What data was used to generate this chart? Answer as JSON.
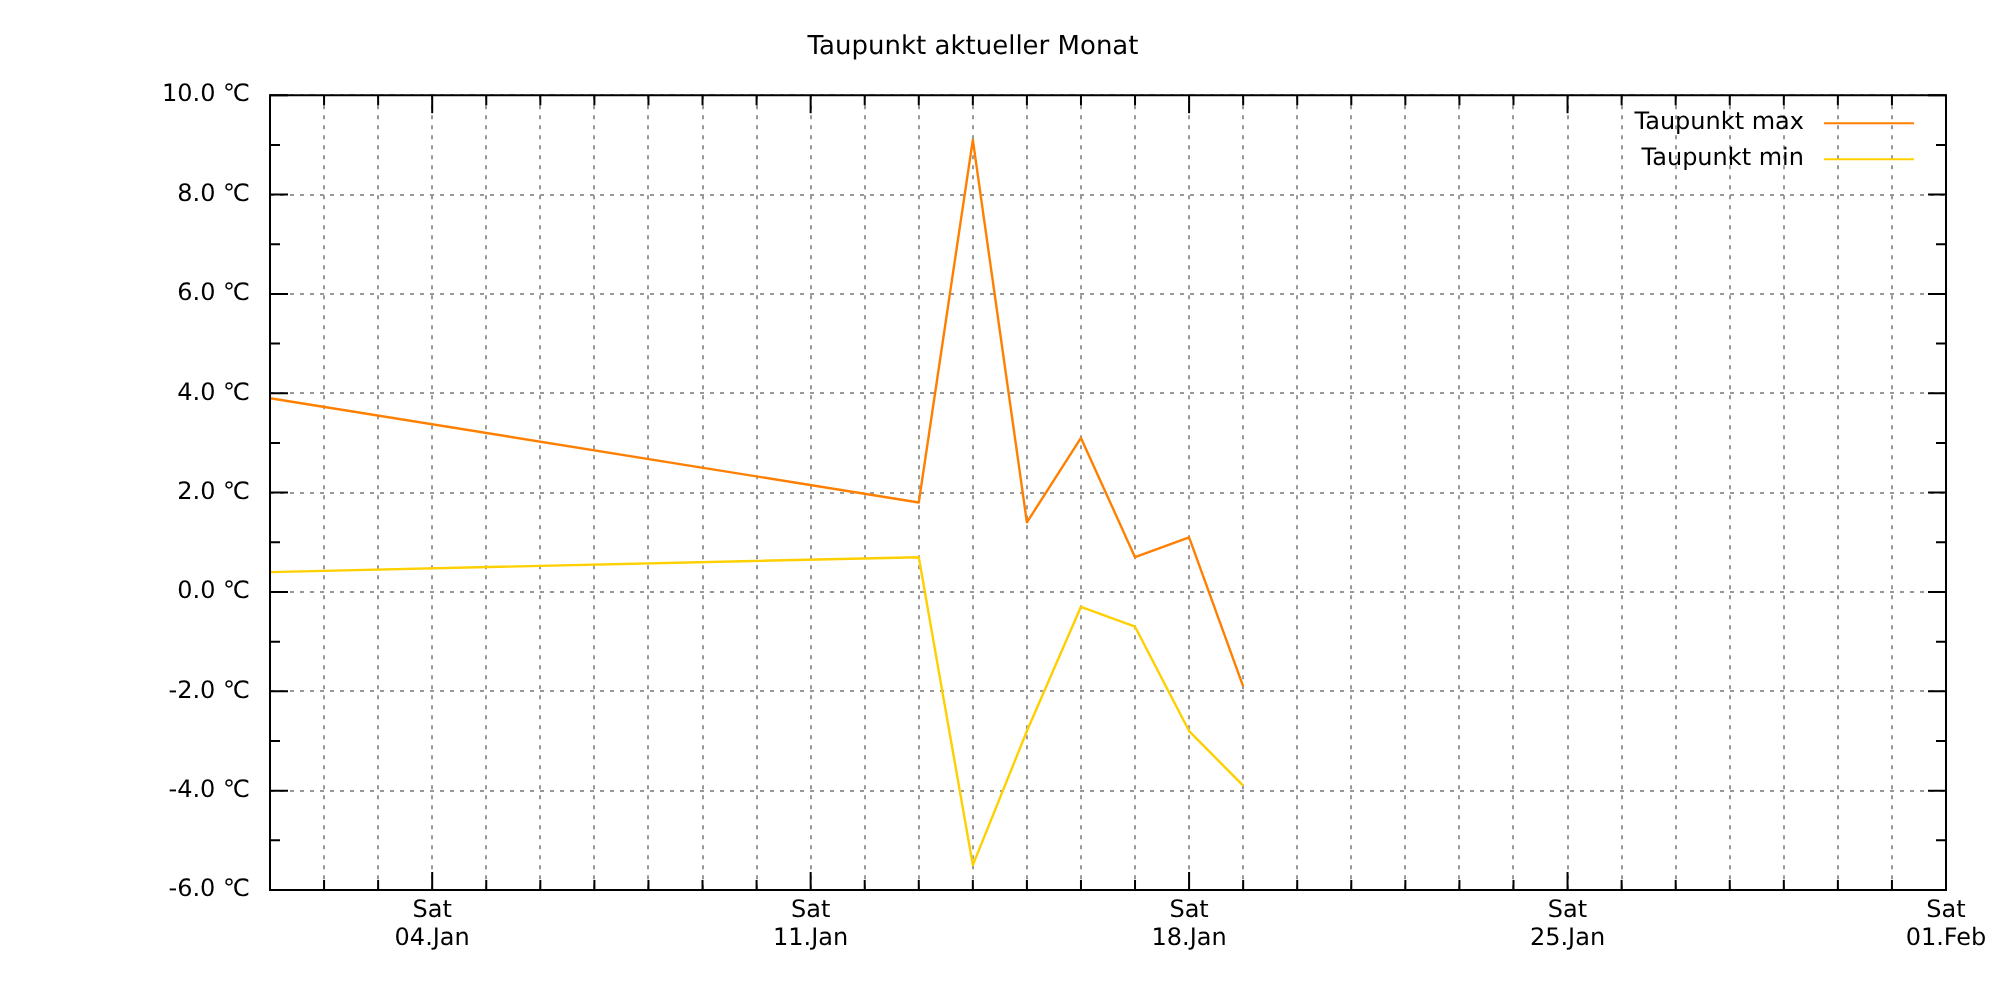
{
  "chart_data": {
    "type": "line",
    "title": "Taupunkt aktueller Monat",
    "x": [
      "--01-01",
      "--01-13",
      "--01-14",
      "--01-15",
      "--01-16",
      "--01-17",
      "--01-18",
      "--01-19"
    ],
    "series": [
      {
        "name": "Taupunkt max",
        "color": "#ff8000",
        "values": [
          3.9,
          1.8,
          9.1,
          1.4,
          3.1,
          0.7,
          1.1,
          -1.9
        ]
      },
      {
        "name": "Taupunkt min",
        "color": "#ffd000",
        "values": [
          0.4,
          0.7,
          -5.5,
          -2.8,
          -0.3,
          -0.7,
          -2.8,
          -3.9
        ]
      }
    ],
    "xlim": [
      "--01-01",
      "--02-01"
    ],
    "xticks": [
      {
        "value": "--01-01",
        "label": null
      },
      {
        "value": "--01-02",
        "label": null
      },
      {
        "value": "--01-03",
        "label": null
      },
      {
        "value": "--01-04",
        "label": "Sat\n04.Jan"
      },
      {
        "value": "--01-05",
        "label": null
      },
      {
        "value": "--01-06",
        "label": null
      },
      {
        "value": "--01-07",
        "label": null
      },
      {
        "value": "--01-08",
        "label": null
      },
      {
        "value": "--01-09",
        "label": null
      },
      {
        "value": "--01-10",
        "label": null
      },
      {
        "value": "--01-11",
        "label": "Sat\n11.Jan"
      },
      {
        "value": "--01-12",
        "label": null
      },
      {
        "value": "--01-13",
        "label": null
      },
      {
        "value": "--01-14",
        "label": null
      },
      {
        "value": "--01-15",
        "label": null
      },
      {
        "value": "--01-16",
        "label": null
      },
      {
        "value": "--01-17",
        "label": null
      },
      {
        "value": "--01-18",
        "label": "Sat\n18.Jan"
      },
      {
        "value": "--01-19",
        "label": null
      },
      {
        "value": "--01-20",
        "label": null
      },
      {
        "value": "--01-21",
        "label": null
      },
      {
        "value": "--01-22",
        "label": null
      },
      {
        "value": "--01-23",
        "label": null
      },
      {
        "value": "--01-24",
        "label": null
      },
      {
        "value": "--01-25",
        "label": "Sat\n25.Jan"
      },
      {
        "value": "--01-26",
        "label": null
      },
      {
        "value": "--01-27",
        "label": null
      },
      {
        "value": "--01-28",
        "label": null
      },
      {
        "value": "--01-29",
        "label": null
      },
      {
        "value": "--01-30",
        "label": null
      },
      {
        "value": "--01-31",
        "label": null
      },
      {
        "value": "--02-01",
        "label": "Sat\n01.Feb"
      }
    ],
    "ylim": [
      -6,
      10
    ],
    "yticks": [
      {
        "value": -6,
        "label": "-6.0 ℃"
      },
      {
        "value": -5,
        "label": null
      },
      {
        "value": -4,
        "label": "-4.0 ℃"
      },
      {
        "value": -3,
        "label": null
      },
      {
        "value": -2,
        "label": "-2.0 ℃"
      },
      {
        "value": -1,
        "label": null
      },
      {
        "value": 0,
        "label": "0.0 ℃"
      },
      {
        "value": 1,
        "label": null
      },
      {
        "value": 2,
        "label": "2.0 ℃"
      },
      {
        "value": 3,
        "label": null
      },
      {
        "value": 4,
        "label": "4.0 ℃"
      },
      {
        "value": 5,
        "label": null
      },
      {
        "value": 6,
        "label": "6.0 ℃"
      },
      {
        "value": 7,
        "label": null
      },
      {
        "value": 8,
        "label": "8.0 ℃"
      },
      {
        "value": 9,
        "label": null
      },
      {
        "value": 10,
        "label": "10.0 ℃"
      }
    ],
    "grid": true,
    "legend": "top right",
    "marker": "none",
    "line_style": "solid"
  }
}
